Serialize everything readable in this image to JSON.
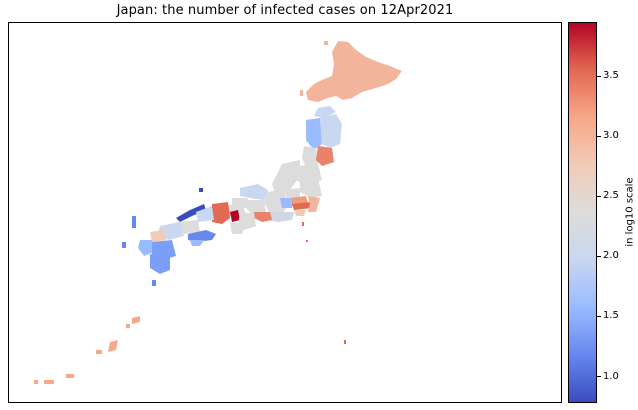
{
  "title": "Japan: the number of infected cases on 12Apr2021",
  "colorbar": {
    "label": "in log10 scale",
    "min": 0.78,
    "max": 3.95,
    "ticks": [
      {
        "value": 1.0,
        "label": "1.0"
      },
      {
        "value": 1.5,
        "label": "1.5"
      },
      {
        "value": 2.0,
        "label": "2.0"
      },
      {
        "value": 2.5,
        "label": "2.5"
      },
      {
        "value": 3.0,
        "label": "3.0"
      },
      {
        "value": 3.5,
        "label": "3.5"
      }
    ],
    "colormap": "coolwarm",
    "stops": [
      "#3b4cc0",
      "#6788ee",
      "#9abbff",
      "#c9d7f0",
      "#dddcdc",
      "#f2cbb7",
      "#f7a889",
      "#e26952",
      "#b40426"
    ]
  },
  "map_colors": {
    "hokkaido": "#f2b49a",
    "tohoku_light": "#c9d7f0",
    "tohoku_blue": "#9abbff",
    "miyagi": "#e8826a",
    "central": "#dddcdc",
    "tokyo": "#e26952",
    "saitama": "#f09a7e",
    "kanagawa": "#f2cbb7",
    "chiba": "#f2b49a",
    "kanto_light": "#d0d6e4",
    "hokuriku": "#c9d7f0",
    "aichi": "#e8826a",
    "osaka": "#b40426",
    "kinki_light": "#dddcdc",
    "hyogo": "#e26952",
    "tottori": "#3b4cc0",
    "shimane": "#5a78e4",
    "chugoku": "#c9d7f0",
    "hiroshima": "#dddcdc",
    "shikoku": "#6788ee",
    "shikoku_light": "#9abbff",
    "fukuoka": "#f2cbb7",
    "kyushu": "#7b9ff9",
    "kyushu_light": "#9abbff",
    "okinawa": "#f7a889",
    "islands_blue": "#6788ee"
  }
}
